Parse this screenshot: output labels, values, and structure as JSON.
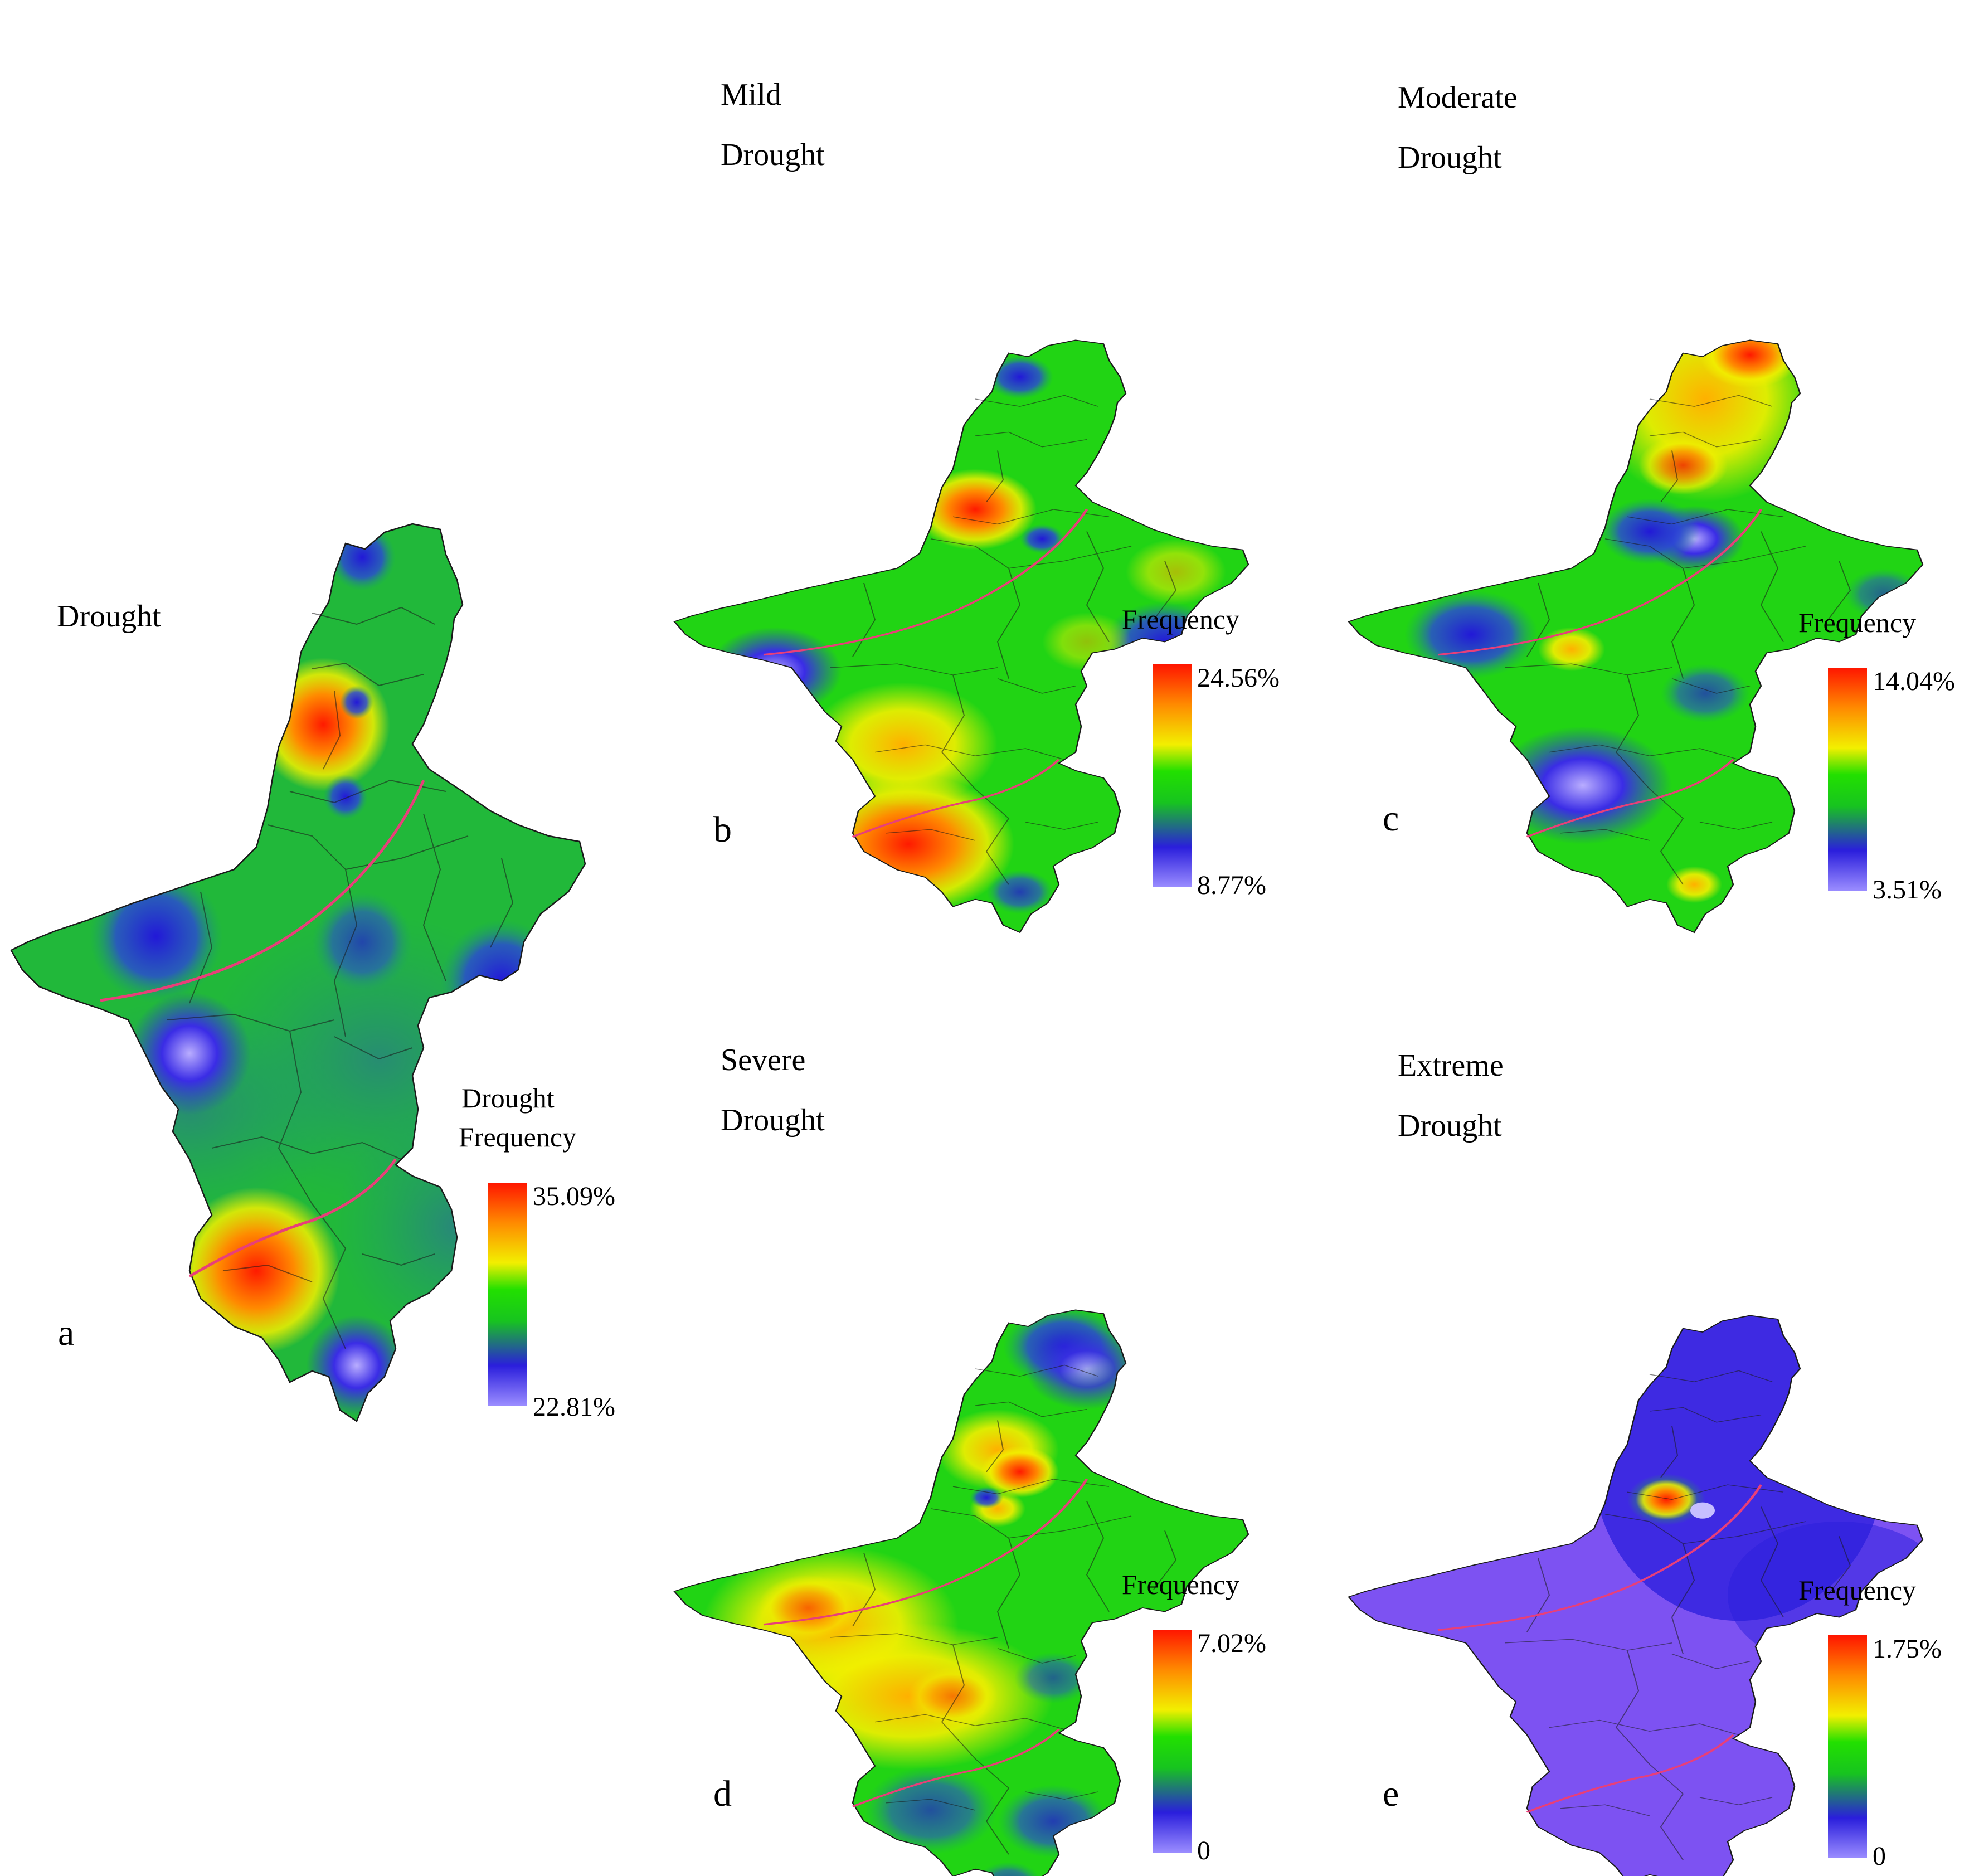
{
  "panels": [
    {
      "id": "a",
      "title_lines": [
        "Drought"
      ],
      "legend_title_lines": [
        "Drought",
        "Frequency"
      ],
      "max_label": "35.09%",
      "min_label": "22.81%"
    },
    {
      "id": "b",
      "title_lines": [
        "Mild",
        "Drought"
      ],
      "legend_title_lines": [
        "Frequency"
      ],
      "max_label": "24.56%",
      "min_label": "8.77%"
    },
    {
      "id": "c",
      "title_lines": [
        "Moderate",
        "Drought"
      ],
      "legend_title_lines": [
        "Frequency"
      ],
      "max_label": "14.04%",
      "min_label": "3.51%"
    },
    {
      "id": "d",
      "title_lines": [
        "Severe",
        "Drought"
      ],
      "legend_title_lines": [
        "Frequency"
      ],
      "max_label": "7.02%",
      "min_label": "0"
    },
    {
      "id": "e",
      "title_lines": [
        "Extreme",
        "Drought"
      ],
      "legend_title_lines": [
        "Frequency"
      ],
      "max_label": "1.75%",
      "min_label": "0"
    }
  ],
  "colors": {
    "scale": [
      "#8a7cff",
      "#3b2ee6",
      "#2bd12b",
      "#16e000",
      "#f4ee00",
      "#ff8c00",
      "#ff1a00"
    ],
    "boundary_line": "#e83f79",
    "district_lines": "#1a1a1a"
  }
}
